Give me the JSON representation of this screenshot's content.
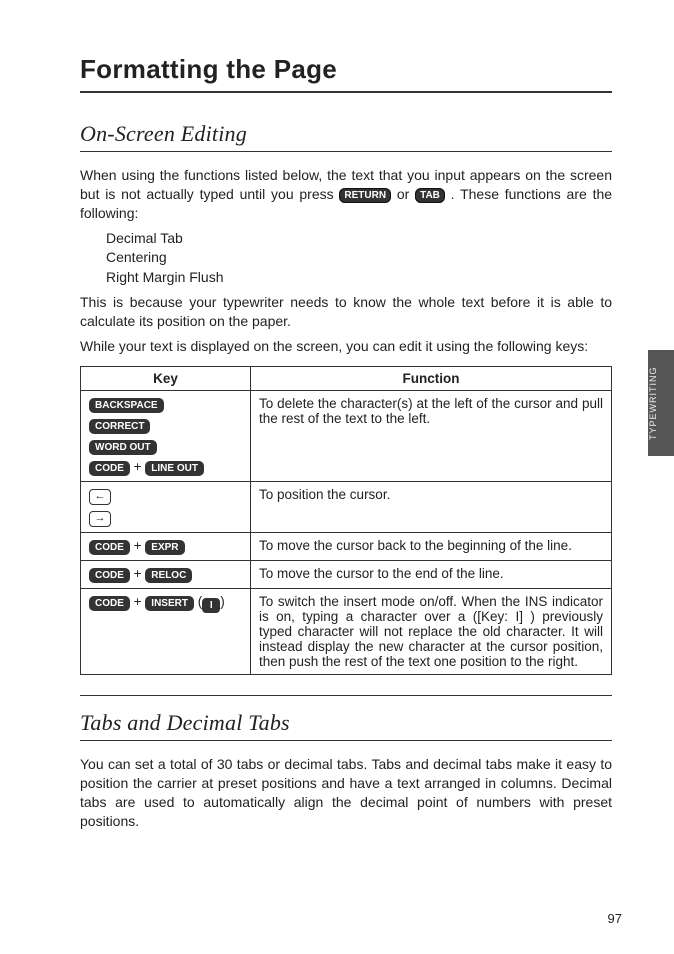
{
  "title": "Formatting the Page",
  "section1": {
    "title": "On-Screen Editing",
    "para1a": "When using the functions listed below, the text that you input appears on the screen but is not actually typed until you press ",
    "key_return": "RETURN",
    "or": " or ",
    "key_tab": "TAB",
    "para1b": ". These functions are the following:",
    "list": [
      "Decimal Tab",
      "Centering",
      "Right Margin Flush"
    ],
    "para2": "This is because your typewriter needs to know the whole text before it is able to calculate its position on the paper.",
    "para3": "While your text is displayed on the screen, you can edit it using the following keys:"
  },
  "table": {
    "col_key": "Key",
    "col_func": "Function",
    "rows": [
      {
        "keys": {
          "type": "stack",
          "items": [
            {
              "label": "BACKSPACE"
            },
            {
              "label": "CORRECT"
            },
            {
              "label": "WORD OUT"
            },
            {
              "combo": [
                "CODE",
                "LINE OUT"
              ]
            }
          ]
        },
        "func": "To delete the character(s) at the left of the cursor and pull the rest of the text to the left."
      },
      {
        "keys": {
          "type": "arrows",
          "items": [
            "←",
            "→"
          ]
        },
        "func": "To position the cursor."
      },
      {
        "keys": {
          "type": "combo",
          "items": [
            "CODE",
            "EXPR"
          ]
        },
        "func": "To move the cursor back to the beginning of the line."
      },
      {
        "keys": {
          "type": "combo",
          "items": [
            "CODE",
            "RELOC"
          ]
        },
        "func": "To move the cursor to the end of the line."
      },
      {
        "keys": {
          "type": "combo-i",
          "items": [
            "CODE",
            "INSERT"
          ],
          "suffix": "I"
        },
        "func": "To switch the insert mode on/off. When the INS indicator is on, typing a character over a ([Key: I] ) previously typed character will not replace the old character. It will instead display the new character at the cursor position, then push the rest of the text one position to the right."
      }
    ]
  },
  "section2": {
    "title": "Tabs and Decimal Tabs",
    "para": "You can set a total of 30 tabs or decimal tabs. Tabs and decimal tabs make it easy to position the carrier at preset positions and have a text arranged in columns. Decimal tabs are used to automatically align the decimal point of numbers with preset positions."
  },
  "side_tab": "TYPEWRITING",
  "page_number": "97"
}
